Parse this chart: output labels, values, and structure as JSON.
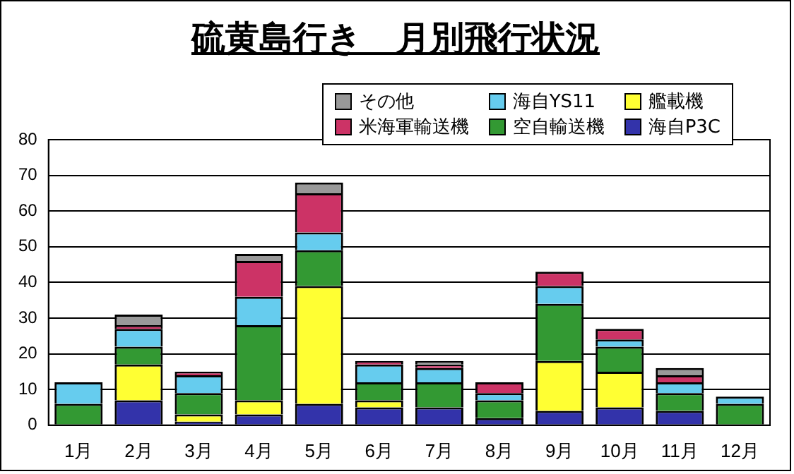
{
  "chart_data": {
    "type": "bar",
    "title": "硫黄島行き　月別飛行状況",
    "stacked": true,
    "categories": [
      "1月",
      "2月",
      "3月",
      "4月",
      "5月",
      "6月",
      "7月",
      "8月",
      "9月",
      "10月",
      "11月",
      "12月"
    ],
    "series": [
      {
        "name": "海自P3C",
        "color": "#3333aa",
        "values": [
          0,
          7,
          1,
          3,
          6,
          5,
          5,
          2,
          4,
          5,
          4,
          0
        ]
      },
      {
        "name": "艦載機",
        "color": "#ffff33",
        "values": [
          0,
          10,
          2,
          4,
          33,
          2,
          0,
          0,
          14,
          10,
          0,
          0
        ]
      },
      {
        "name": "空自輸送機",
        "color": "#339933",
        "values": [
          6,
          5,
          6,
          21,
          10,
          5,
          7,
          5,
          16,
          7,
          5,
          6
        ]
      },
      {
        "name": "海自YS11",
        "color": "#66ccee",
        "values": [
          6,
          5,
          5,
          8,
          5,
          5,
          4,
          2,
          5,
          2,
          3,
          2
        ]
      },
      {
        "name": "米海軍輸送機",
        "color": "#cc3366",
        "values": [
          0,
          1,
          1,
          10,
          11,
          1,
          1,
          3,
          4,
          3,
          2,
          0
        ]
      },
      {
        "name": "その他",
        "color": "#999999",
        "values": [
          0,
          3,
          0,
          2,
          3,
          0,
          1,
          0,
          0,
          0,
          2,
          0
        ]
      }
    ],
    "ylim": [
      0,
      80
    ],
    "yticks": [
      0,
      10,
      20,
      30,
      40,
      50,
      60,
      70,
      80
    ],
    "grid": "y",
    "legend": "top right"
  }
}
